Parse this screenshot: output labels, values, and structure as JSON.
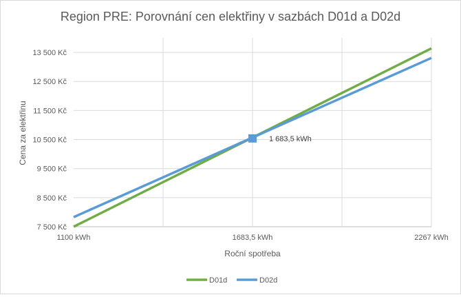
{
  "chart_data": {
    "type": "line",
    "title": "Region PRE: Porovnání cen elektřiny v sazbách D01d a D02d",
    "xlabel": "Roční spotřeba",
    "ylabel": "Cena za elektřinu",
    "xlim": [
      1100,
      2267
    ],
    "ylim": [
      7500,
      14000
    ],
    "x_tick_labels": [
      "1100 kWh",
      "1683,5 kWh",
      "2267 kWh"
    ],
    "x_ticks": [
      1100,
      1683.5,
      2267
    ],
    "y_ticks": [
      7500,
      8500,
      9500,
      10500,
      11500,
      12500,
      13500
    ],
    "y_tick_labels": [
      "7 500 Kč",
      "8 500 Kč",
      "9 500 Kč",
      "10 500 Kč",
      "11 500 Kč",
      "12 500 Kč",
      "13 500 Kč"
    ],
    "grid": true,
    "legend": "bottom",
    "series": [
      {
        "name": "D01d",
        "color": "#70ad47",
        "x": [
          1100,
          2267
        ],
        "y": [
          7500,
          13640
        ]
      },
      {
        "name": "D02d",
        "color": "#5b9bd5",
        "x": [
          1100,
          2267
        ],
        "y": [
          7830,
          13310
        ]
      }
    ],
    "annotation": {
      "x": 1683.5,
      "y": 10540,
      "label": "1 683,5 kWh",
      "marker": "square",
      "color": "#5b9bd5"
    }
  }
}
